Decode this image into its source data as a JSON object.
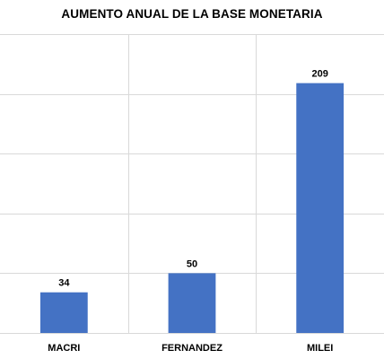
{
  "chart_data": {
    "type": "bar",
    "title": "AUMENTO ANUAL DE LA BASE MONETARIA",
    "categories": [
      "MACRI",
      "FERNANDEZ",
      "MILEI"
    ],
    "values": [
      34,
      50,
      209
    ],
    "ylim": [
      0,
      250
    ],
    "grid": true,
    "xlabel": "",
    "ylabel": "",
    "colors": {
      "bar": "#4472C4",
      "grid": "#d9d9d9",
      "text": "#000000"
    }
  }
}
